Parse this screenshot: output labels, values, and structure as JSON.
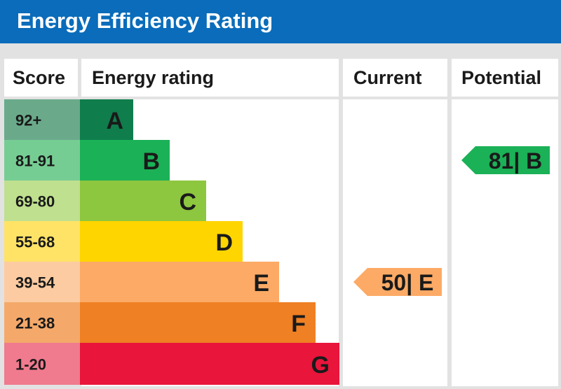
{
  "header": {
    "title": "Energy Efficiency Rating"
  },
  "columns": {
    "score": "Score",
    "rating": "Energy rating",
    "current": "Current",
    "potential": "Potential"
  },
  "chart_data": {
    "type": "bar",
    "bands": [
      {
        "letter": "A",
        "range": "92+",
        "color": "#0f7d4c",
        "score_color": "#6aaa8b"
      },
      {
        "letter": "B",
        "range": "81-91",
        "color": "#1bb157",
        "score_color": "#76cd93"
      },
      {
        "letter": "C",
        "range": "69-80",
        "color": "#8dc63f",
        "score_color": "#bfe08e"
      },
      {
        "letter": "D",
        "range": "55-68",
        "color": "#ffd500",
        "score_color": "#ffe366"
      },
      {
        "letter": "E",
        "range": "39-54",
        "color": "#fcaa65",
        "score_color": "#fdcba1"
      },
      {
        "letter": "F",
        "range": "21-38",
        "color": "#ef8023",
        "score_color": "#f4a96a"
      },
      {
        "letter": "G",
        "range": "1-20",
        "color": "#e9153b",
        "score_color": "#f07a8e"
      }
    ],
    "current": {
      "value": 50,
      "band": "E",
      "label": "50| E",
      "color": "#fcaa65"
    },
    "potential": {
      "value": 81,
      "band": "B",
      "label": "81| B",
      "color": "#1bb157"
    }
  }
}
